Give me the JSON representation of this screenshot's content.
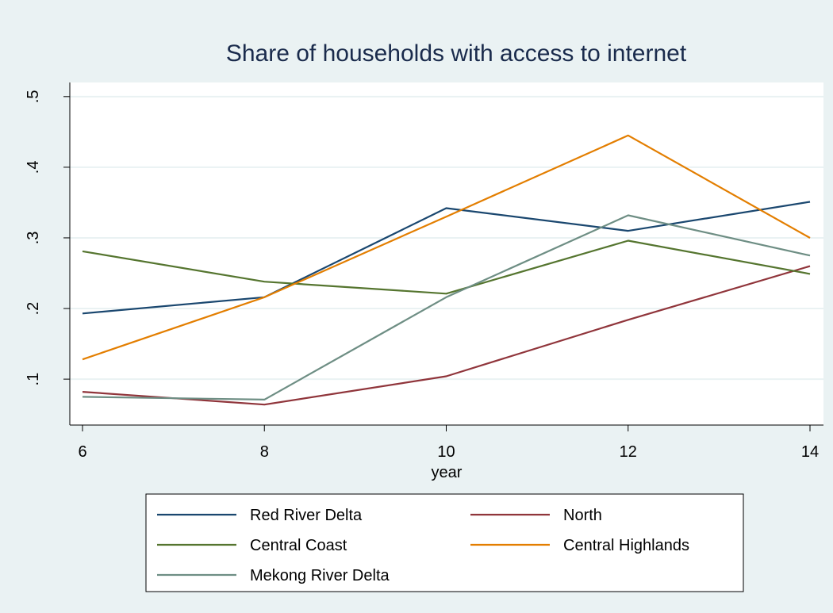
{
  "chart_data": {
    "type": "line",
    "title": "Share of households with access to internet",
    "xlabel": "year",
    "ylabel": "",
    "x": [
      6,
      8,
      10,
      12,
      14
    ],
    "xlim": [
      6,
      14
    ],
    "ylim": [
      0.035,
      0.52
    ],
    "xticks": [
      6,
      8,
      10,
      12,
      14
    ],
    "xtick_labels": [
      "6",
      "8",
      "10",
      "12",
      "14"
    ],
    "yticks": [
      0.1,
      0.2,
      0.3,
      0.4,
      0.5
    ],
    "ytick_labels": [
      ".1",
      ".2",
      ".3",
      ".4",
      ".5"
    ],
    "grid": true,
    "legend_position": "bottom",
    "series": [
      {
        "name": "Red River Delta",
        "color": "#1a476f",
        "values": [
          0.193,
          0.216,
          0.342,
          0.31,
          0.351
        ]
      },
      {
        "name": "North",
        "color": "#90353b",
        "values": [
          0.082,
          0.064,
          0.104,
          0.184,
          0.26
        ]
      },
      {
        "name": "Central Coast",
        "color": "#55752f",
        "values": [
          0.281,
          0.238,
          0.221,
          0.296,
          0.249
        ]
      },
      {
        "name": "Central Highlands",
        "color": "#e37e00",
        "values": [
          0.128,
          0.216,
          0.33,
          0.445,
          0.3
        ]
      },
      {
        "name": "Mekong River Delta",
        "color": "#6e8e84",
        "values": [
          0.075,
          0.071,
          0.216,
          0.332,
          0.275
        ]
      }
    ]
  }
}
